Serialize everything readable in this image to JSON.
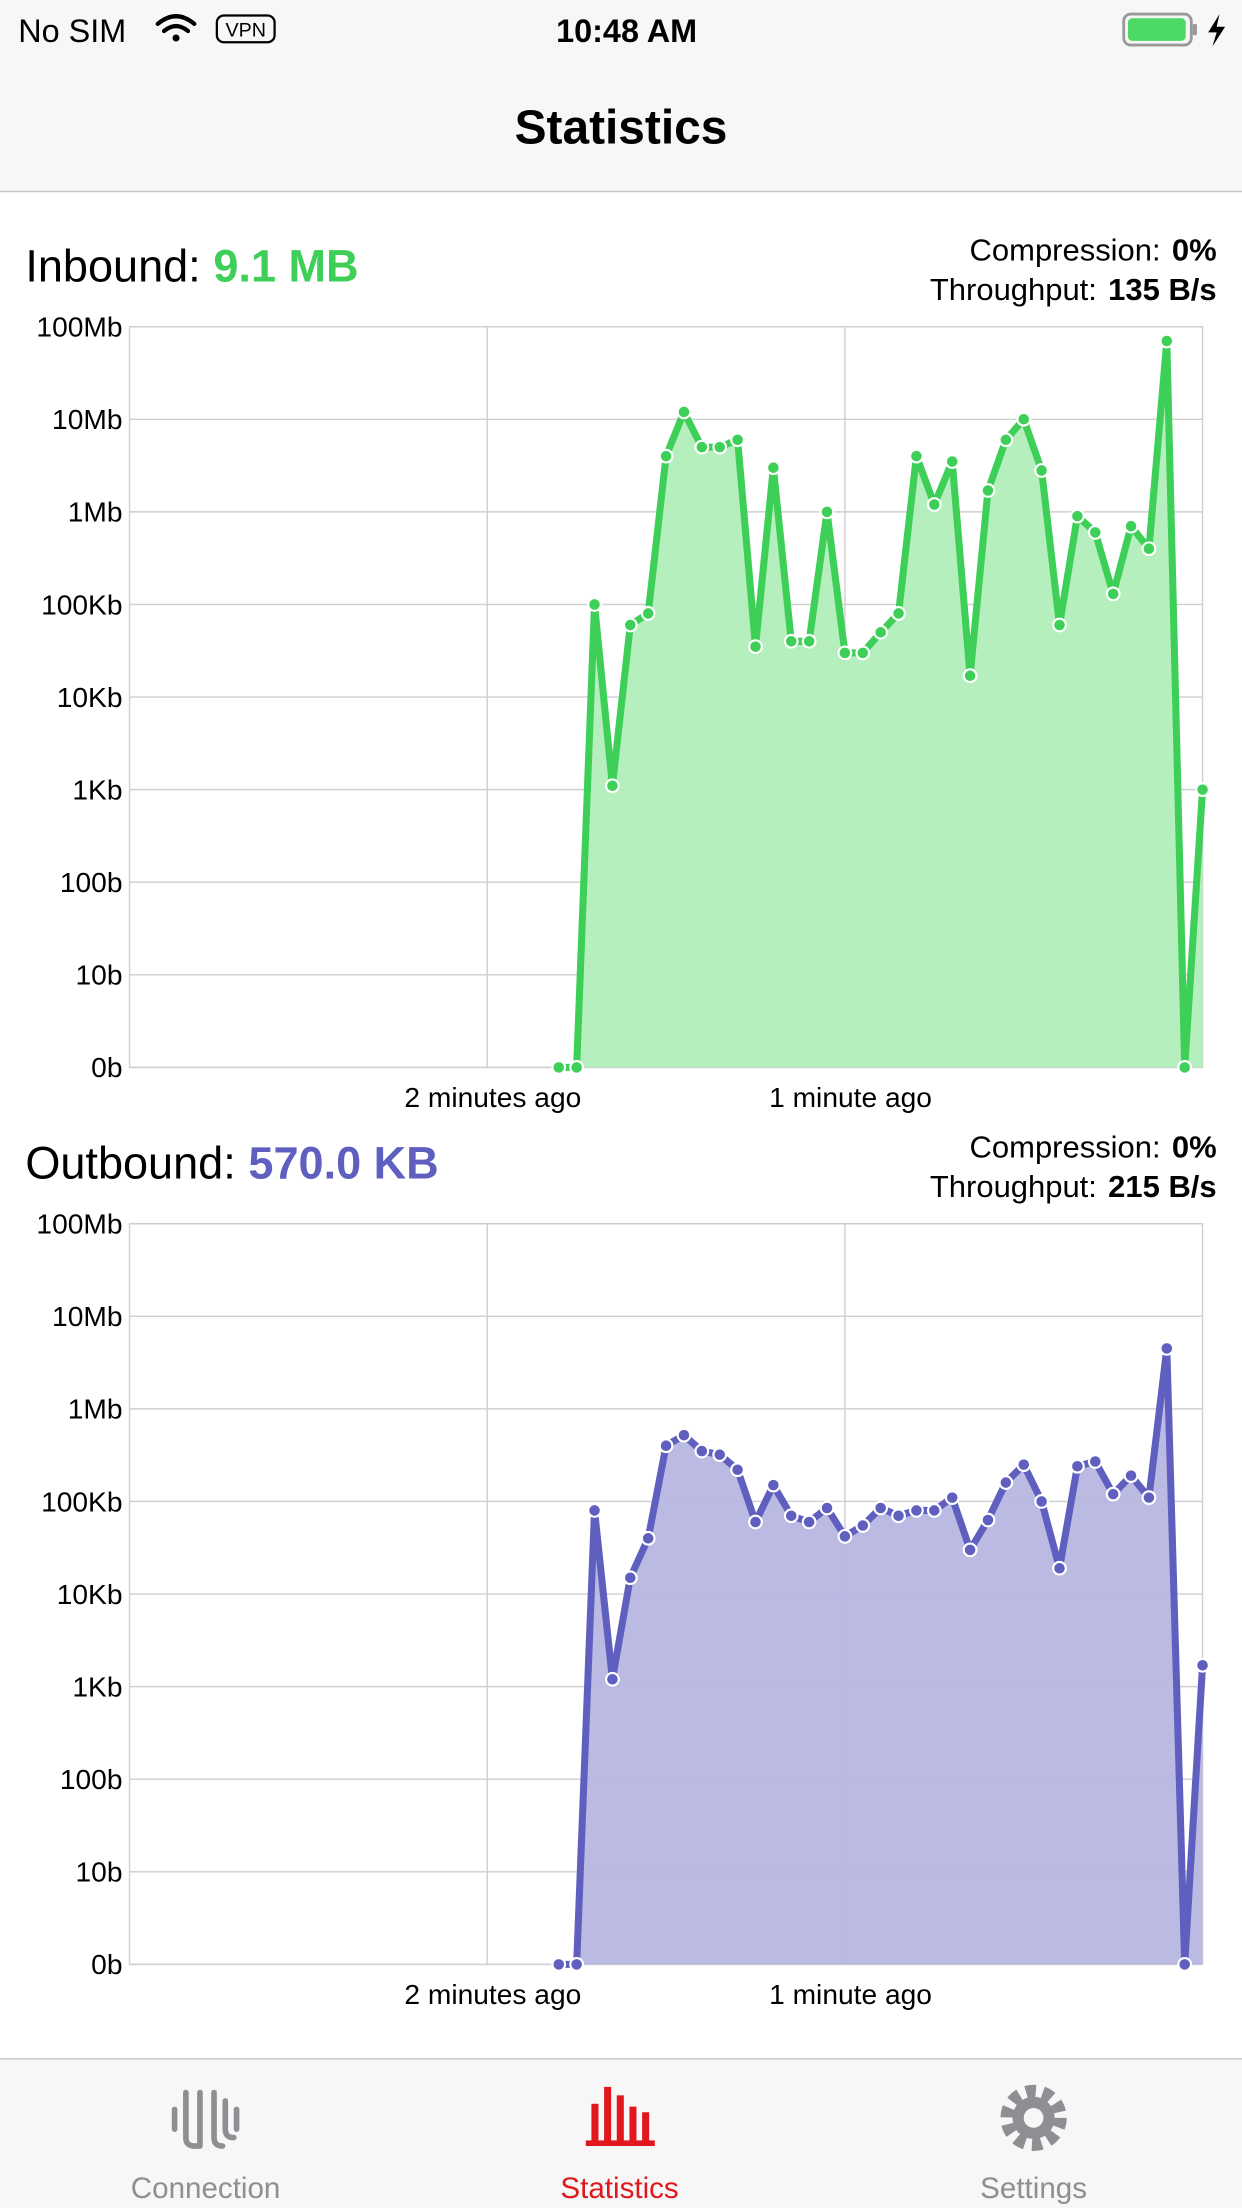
{
  "status_bar": {
    "carrier": "No SIM",
    "vpn": "VPN",
    "time": "10:48 AM"
  },
  "nav": {
    "title": "Statistics"
  },
  "chart_data": [
    {
      "type": "area",
      "title": "Inbound:",
      "total": "9.1 MB",
      "compression_label": "Compression:",
      "compression": "0%",
      "throughput_label": "Throughput:",
      "throughput": "135 B/s",
      "color": "#3dcf57",
      "fill": "#b2eeba",
      "log_scale": true,
      "grid": true,
      "ylim": [
        0,
        100000000
      ],
      "yticks": [
        {
          "value": 0,
          "label": "0b"
        },
        {
          "value": 10,
          "label": "10b"
        },
        {
          "value": 100,
          "label": "100b"
        },
        {
          "value": 1000,
          "label": "1Kb"
        },
        {
          "value": 10000,
          "label": "10Kb"
        },
        {
          "value": 100000,
          "label": "100Kb"
        },
        {
          "value": 1000000,
          "label": "1Mb"
        },
        {
          "value": 10000000,
          "label": "10Mb"
        },
        {
          "value": 100000000,
          "label": "100Mb"
        }
      ],
      "xlim": [
        -180,
        0
      ],
      "xticks": [
        {
          "value": -120,
          "label": "2 minutes ago"
        },
        {
          "value": -60,
          "label": "1 minute ago"
        }
      ],
      "x": [
        -108,
        -105,
        -102,
        -99,
        -96,
        -93,
        -90,
        -87,
        -84,
        -81,
        -78,
        -75,
        -72,
        -69,
        -66,
        -63,
        -60,
        -57,
        -54,
        -51,
        -48,
        -45,
        -42,
        -39,
        -36,
        -33,
        -30,
        -27,
        -24,
        -21,
        -18,
        -15,
        -12,
        -9,
        -6,
        -3,
        0
      ],
      "values": [
        0,
        0,
        100000,
        1100,
        60000,
        80000,
        4000000,
        12000000,
        5000000,
        5000000,
        6000000,
        35000,
        3000000,
        40000,
        40000,
        1000000,
        30000,
        30000,
        50000,
        80000,
        4000000,
        1200000,
        3500000,
        17000,
        1700000,
        6000000,
        10000000,
        2800000,
        60000,
        900000,
        600000,
        130000,
        700000,
        400000,
        70000000,
        0,
        1000
      ]
    },
    {
      "type": "area",
      "title": "Outbound:",
      "total": "570.0 KB",
      "compression_label": "Compression:",
      "compression": "0%",
      "throughput_label": "Throughput:",
      "throughput": "215 B/s",
      "color": "#5f5fbf",
      "fill": "#b6b6e1",
      "log_scale": true,
      "grid": true,
      "ylim": [
        0,
        100000000
      ],
      "yticks": [
        {
          "value": 0,
          "label": "0b"
        },
        {
          "value": 10,
          "label": "10b"
        },
        {
          "value": 100,
          "label": "100b"
        },
        {
          "value": 1000,
          "label": "1Kb"
        },
        {
          "value": 10000,
          "label": "10Kb"
        },
        {
          "value": 100000,
          "label": "100Kb"
        },
        {
          "value": 1000000,
          "label": "1Mb"
        },
        {
          "value": 10000000,
          "label": "10Mb"
        },
        {
          "value": 100000000,
          "label": "100Mb"
        }
      ],
      "xlim": [
        -180,
        0
      ],
      "xticks": [
        {
          "value": -120,
          "label": "2 minutes ago"
        },
        {
          "value": -60,
          "label": "1 minute ago"
        }
      ],
      "x": [
        -108,
        -105,
        -102,
        -99,
        -96,
        -93,
        -90,
        -87,
        -84,
        -81,
        -78,
        -75,
        -72,
        -69,
        -66,
        -63,
        -60,
        -57,
        -54,
        -51,
        -48,
        -45,
        -42,
        -39,
        -36,
        -33,
        -30,
        -27,
        -24,
        -21,
        -18,
        -15,
        -12,
        -9,
        -6,
        -3,
        0
      ],
      "values": [
        0,
        0,
        80000,
        1200,
        15000,
        40000,
        400000,
        520000,
        350000,
        320000,
        220000,
        60000,
        150000,
        70000,
        60000,
        85000,
        42000,
        55000,
        85000,
        70000,
        80000,
        80000,
        110000,
        30000,
        63000,
        160000,
        250000,
        100000,
        19000,
        240000,
        270000,
        120000,
        190000,
        110000,
        4500000,
        0,
        1700
      ]
    }
  ],
  "tab_bar": {
    "items": [
      "Connection",
      "Statistics",
      "Settings"
    ]
  }
}
